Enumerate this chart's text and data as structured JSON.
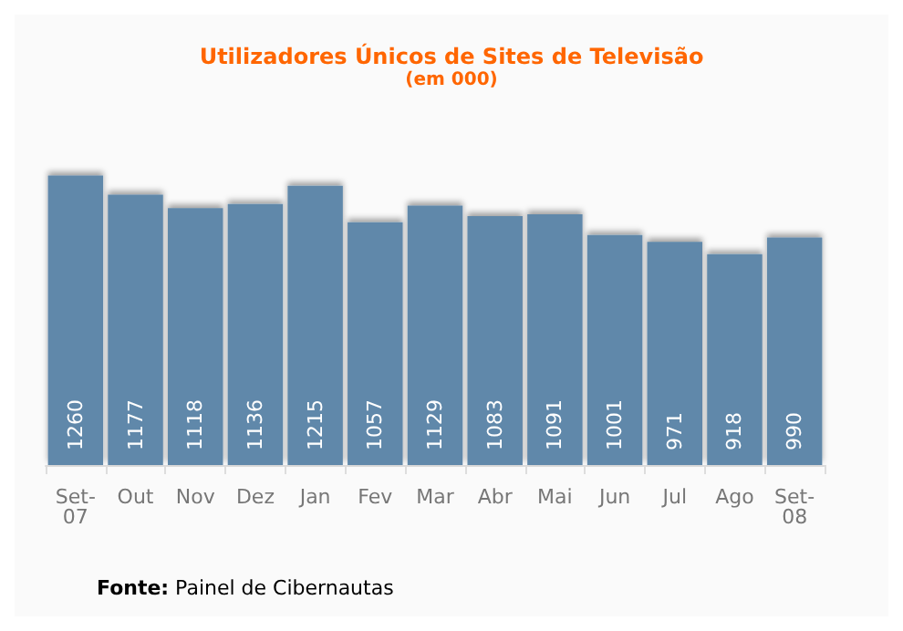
{
  "chart_data": {
    "type": "bar",
    "title": "Utilizadores Únicos de Sites de Televisão",
    "subtitle": "(em 000)",
    "categories": [
      "Set-07",
      "Out",
      "Nov",
      "Dez",
      "Jan",
      "Fev",
      "Mar",
      "Abr",
      "Mai",
      "Jun",
      "Jul",
      "Ago",
      "Set-08"
    ],
    "values": [
      1260,
      1177,
      1118,
      1136,
      1215,
      1057,
      1129,
      1083,
      1091,
      1001,
      971,
      918,
      990
    ],
    "color": "#6088aa",
    "data_labels": true,
    "annotations": [
      "Fonte: Painel de Cibernautas"
    ]
  }
}
